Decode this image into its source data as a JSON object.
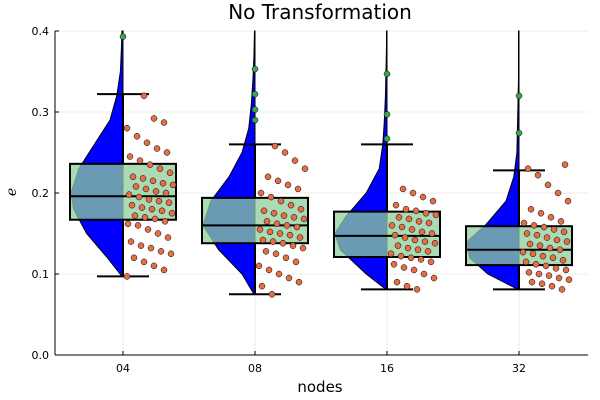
{
  "chart_data": {
    "type": "box",
    "title": "No Transformation",
    "xlabel": "nodes",
    "ylabel": "e",
    "categories": [
      "04",
      "08",
      "16",
      "32"
    ],
    "ylim": [
      0.0,
      0.4
    ],
    "yticks": [
      "0.0",
      "0.1",
      "0.2",
      "0.3",
      "0.4"
    ],
    "grid": true,
    "legend": "none",
    "colors": {
      "violin": "#0000ff",
      "box_fill": "#8fce9b",
      "box_edge": "#000000",
      "points": "#e26f46",
      "outliers": "#3da44d",
      "grid": "#e6e6e6"
    },
    "boxes": [
      {
        "category": "04",
        "whisker_low": 0.097,
        "q1": 0.167,
        "median": 0.196,
        "q3": 0.236,
        "whisker_high": 0.322,
        "outliers": [
          0.393
        ]
      },
      {
        "category": "08",
        "whisker_low": 0.075,
        "q1": 0.138,
        "median": 0.16,
        "q3": 0.194,
        "whisker_high": 0.26,
        "outliers": [
          0.353,
          0.322,
          0.303,
          0.29
        ]
      },
      {
        "category": "16",
        "whisker_low": 0.081,
        "q1": 0.121,
        "median": 0.147,
        "q3": 0.177,
        "whisker_high": 0.26,
        "outliers": [
          0.347,
          0.297,
          0.267
        ]
      },
      {
        "category": "32",
        "whisker_low": 0.081,
        "q1": 0.111,
        "median": 0.13,
        "q3": 0.159,
        "whisker_high": 0.228,
        "outliers": [
          0.32,
          0.274
        ]
      }
    ],
    "violins": [
      {
        "category": "04",
        "y": [
          0.097,
          0.12,
          0.15,
          0.18,
          0.2,
          0.23,
          0.26,
          0.29,
          0.32,
          0.35,
          0.38,
          0.4
        ],
        "density": [
          0.02,
          0.3,
          0.7,
          0.95,
          1.0,
          0.85,
          0.55,
          0.25,
          0.12,
          0.05,
          0.03,
          0.02
        ]
      },
      {
        "category": "08",
        "y": [
          0.075,
          0.1,
          0.13,
          0.16,
          0.19,
          0.22,
          0.25,
          0.28,
          0.31,
          0.34,
          0.37,
          0.4
        ],
        "density": [
          0.02,
          0.25,
          0.7,
          1.0,
          0.85,
          0.5,
          0.25,
          0.12,
          0.07,
          0.04,
          0.02,
          0.01
        ]
      },
      {
        "category": "16",
        "y": [
          0.081,
          0.1,
          0.13,
          0.15,
          0.17,
          0.2,
          0.23,
          0.26,
          0.29,
          0.32,
          0.35,
          0.38,
          0.4
        ],
        "density": [
          0.02,
          0.4,
          0.9,
          1.0,
          0.8,
          0.4,
          0.15,
          0.08,
          0.05,
          0.03,
          0.02,
          0.01,
          0.01
        ]
      },
      {
        "category": "32",
        "y": [
          0.081,
          0.1,
          0.12,
          0.14,
          0.16,
          0.19,
          0.22,
          0.25,
          0.28,
          0.31,
          0.34,
          0.37,
          0.4
        ],
        "density": [
          0.02,
          0.6,
          0.95,
          1.0,
          0.65,
          0.25,
          0.1,
          0.04,
          0.03,
          0.02,
          0.01,
          0.01,
          0.01
        ]
      }
    ],
    "points": [
      {
        "category": "04",
        "values": [
          0.097,
          0.105,
          0.11,
          0.115,
          0.12,
          0.125,
          0.128,
          0.132,
          0.135,
          0.14,
          0.145,
          0.15,
          0.155,
          0.16,
          0.162,
          0.165,
          0.168,
          0.17,
          0.172,
          0.175,
          0.178,
          0.18,
          0.182,
          0.185,
          0.188,
          0.19,
          0.192,
          0.195,
          0.198,
          0.2,
          0.202,
          0.205,
          0.208,
          0.21,
          0.212,
          0.215,
          0.218,
          0.22,
          0.225,
          0.23,
          0.235,
          0.24,
          0.245,
          0.25,
          0.255,
          0.262,
          0.27,
          0.28,
          0.287,
          0.292,
          0.32
        ]
      },
      {
        "category": "08",
        "values": [
          0.075,
          0.085,
          0.09,
          0.095,
          0.1,
          0.105,
          0.11,
          0.115,
          0.12,
          0.125,
          0.128,
          0.132,
          0.135,
          0.138,
          0.14,
          0.142,
          0.145,
          0.148,
          0.15,
          0.152,
          0.155,
          0.158,
          0.16,
          0.162,
          0.165,
          0.168,
          0.17,
          0.172,
          0.175,
          0.178,
          0.18,
          0.185,
          0.19,
          0.195,
          0.2,
          0.205,
          0.21,
          0.215,
          0.22,
          0.23,
          0.24,
          0.25,
          0.258
        ]
      },
      {
        "category": "16",
        "values": [
          0.081,
          0.085,
          0.09,
          0.095,
          0.1,
          0.105,
          0.108,
          0.112,
          0.115,
          0.118,
          0.12,
          0.122,
          0.125,
          0.128,
          0.13,
          0.132,
          0.135,
          0.138,
          0.14,
          0.142,
          0.145,
          0.148,
          0.15,
          0.152,
          0.155,
          0.158,
          0.16,
          0.163,
          0.165,
          0.168,
          0.17,
          0.173,
          0.175,
          0.178,
          0.18,
          0.185,
          0.19,
          0.195,
          0.2,
          0.205
        ]
      },
      {
        "category": "32",
        "values": [
          0.081,
          0.085,
          0.088,
          0.09,
          0.093,
          0.095,
          0.098,
          0.1,
          0.102,
          0.105,
          0.107,
          0.11,
          0.112,
          0.115,
          0.117,
          0.12,
          0.122,
          0.125,
          0.127,
          0.13,
          0.132,
          0.135,
          0.137,
          0.14,
          0.142,
          0.145,
          0.148,
          0.15,
          0.152,
          0.155,
          0.158,
          0.16,
          0.163,
          0.165,
          0.17,
          0.175,
          0.18,
          0.19,
          0.2,
          0.21,
          0.222,
          0.23,
          0.235
        ]
      }
    ]
  }
}
